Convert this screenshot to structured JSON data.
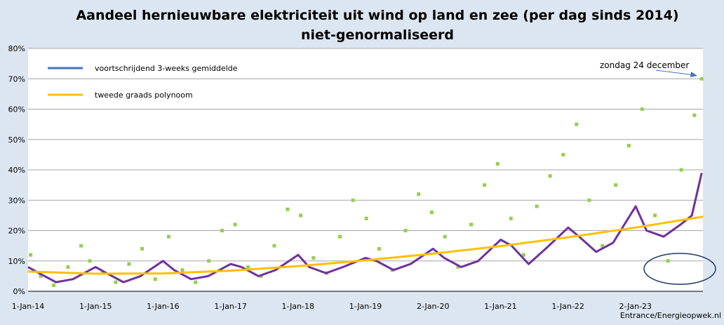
{
  "chart_data": {
    "type": "scatter",
    "title": "Aandeel hernieuwbare elektriciteit uit wind op land en zee (per dag sinds 2014)",
    "subtitle": "niet-genormaliseerd",
    "x_tick_labels": [
      "1-Jan-14",
      "1-Jan-15",
      "1-Jan-16",
      "1-Jan-17",
      "1-Jan-18",
      "1-Jan-19",
      "2-Jan-20",
      "1-Jan-21",
      "1-Jan-22",
      "2-Jan-23"
    ],
    "y_tick_labels": [
      "0%",
      "10%",
      "20%",
      "30%",
      "40%",
      "50%",
      "60%",
      "70%",
      "80%"
    ],
    "ylim": [
      0,
      80
    ],
    "xlim": [
      "2014-01-01",
      "2023-12-31"
    ],
    "grid": true,
    "legend_position": "top-left",
    "series": [
      {
        "name": "voortschrijdend 3-weeks gemiddelde",
        "type": "line",
        "color": "#7030a0",
        "x": [
          "2014-01-01",
          "2014-03-01",
          "2014-06-01",
          "2014-09-01",
          "2015-01-01",
          "2015-03-01",
          "2015-06-01",
          "2015-09-01",
          "2016-01-01",
          "2016-03-01",
          "2016-06-01",
          "2016-09-01",
          "2017-01-01",
          "2017-03-01",
          "2017-06-01",
          "2017-09-01",
          "2018-01-01",
          "2018-03-01",
          "2018-06-01",
          "2018-09-01",
          "2019-01-01",
          "2019-03-01",
          "2019-06-01",
          "2019-09-01",
          "2020-01-01",
          "2020-03-01",
          "2020-06-01",
          "2020-09-01",
          "2021-01-01",
          "2021-03-01",
          "2021-06-01",
          "2021-09-01",
          "2022-01-01",
          "2022-03-01",
          "2022-06-01",
          "2022-09-01",
          "2023-01-01",
          "2023-03-01",
          "2023-06-01",
          "2023-09-01",
          "2023-11-01",
          "2023-12-24"
        ],
        "y": [
          8,
          6,
          3,
          4,
          8,
          6,
          3,
          5,
          10,
          7,
          4,
          5,
          9,
          8,
          5,
          7,
          12,
          8,
          6,
          8,
          11,
          10,
          7,
          9,
          14,
          11,
          8,
          10,
          17,
          15,
          9,
          14,
          21,
          18,
          13,
          16,
          28,
          20,
          18,
          22,
          25,
          39
        ]
      },
      {
        "name": "tweede graads polynoom",
        "type": "line",
        "color": "#ffc000",
        "x": [
          "2014-01-01",
          "2015-01-01",
          "2016-01-01",
          "2017-01-01",
          "2018-01-01",
          "2019-01-01",
          "2020-01-01",
          "2021-01-01",
          "2022-01-01",
          "2023-01-01",
          "2023-12-31"
        ],
        "y": [
          6.5,
          5.8,
          5.9,
          6.8,
          8.3,
          10.2,
          12.4,
          14.9,
          17.8,
          21.0,
          24.6
        ]
      },
      {
        "name": "",
        "type": "scatter",
        "color": "#92d050",
        "x": [
          "2014-01-15",
          "2014-03-10",
          "2014-05-20",
          "2014-08-05",
          "2014-10-15",
          "2014-12-01",
          "2015-02-10",
          "2015-04-20",
          "2015-07-01",
          "2015-09-10",
          "2015-11-20",
          "2016-02-01",
          "2016-04-15",
          "2016-06-25",
          "2016-09-05",
          "2016-11-15",
          "2017-01-25",
          "2017-04-05",
          "2017-06-15",
          "2017-08-25",
          "2017-11-05",
          "2018-01-15",
          "2018-03-25",
          "2018-06-05",
          "2018-08-15",
          "2018-10-25",
          "2019-01-05",
          "2019-03-15",
          "2019-05-25",
          "2019-08-05",
          "2019-10-15",
          "2019-12-25",
          "2020-03-05",
          "2020-05-15",
          "2020-07-25",
          "2020-10-05",
          "2020-12-15",
          "2021-02-25",
          "2021-05-05",
          "2021-07-15",
          "2021-09-25",
          "2021-12-05",
          "2022-02-15",
          "2022-04-25",
          "2022-07-05",
          "2022-09-15",
          "2022-11-25",
          "2023-02-05",
          "2023-04-15",
          "2023-06-25",
          "2023-09-05",
          "2023-11-15",
          "2023-12-24"
        ],
        "y": [
          12,
          5,
          2,
          8,
          15,
          10,
          6,
          3,
          9,
          14,
          4,
          18,
          7,
          3,
          10,
          20,
          22,
          8,
          5,
          15,
          27,
          25,
          11,
          6,
          18,
          30,
          24,
          14,
          7,
          20,
          32,
          26,
          18,
          8,
          22,
          35,
          42,
          24,
          12,
          28,
          38,
          45,
          55,
          30,
          15,
          35,
          48,
          60,
          25,
          10,
          40,
          58,
          70
        ]
      }
    ]
  },
  "legend": {
    "items": [
      {
        "label": "voortschrijdend 3-weeks gemiddelde",
        "color": "#4472c4"
      },
      {
        "label": "tweede graads polynoom",
        "color": "#ffc000"
      }
    ]
  },
  "annotation": {
    "label": "zondag 24 december"
  },
  "credit": "Entrance/Energieopwek.nl"
}
